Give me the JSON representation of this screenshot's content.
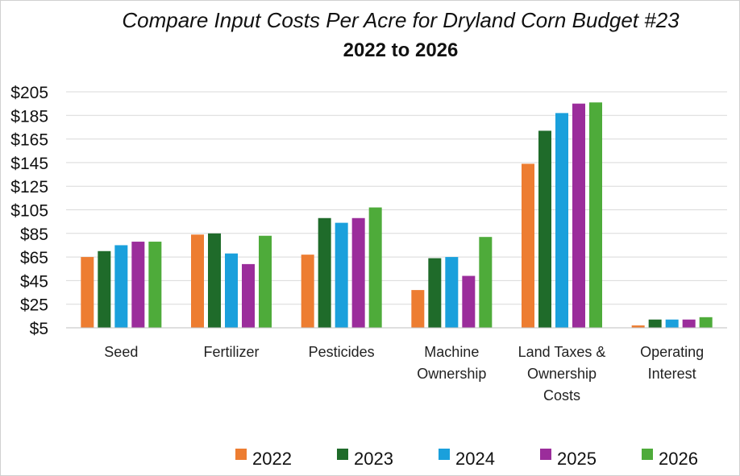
{
  "chart_data": {
    "type": "bar",
    "title": "Compare Input Costs Per Acre for Dryland Corn Budget #23",
    "subtitle": "2022 to 2026",
    "xlabel": "",
    "ylabel": "",
    "ylim": [
      5,
      205
    ],
    "ytick_values": [
      5,
      25,
      45,
      65,
      85,
      105,
      125,
      145,
      165,
      185,
      205
    ],
    "ytick_labels": [
      "$5",
      "$25",
      "$45",
      "$65",
      "$85",
      "$105",
      "$125",
      "$145",
      "$165",
      "$185",
      "$205"
    ],
    "categories": [
      [
        "Seed"
      ],
      [
        "Fertilizer"
      ],
      [
        "Pesticides"
      ],
      [
        "Machine",
        "Ownership"
      ],
      [
        "Land Taxes &",
        "Ownership",
        "Costs"
      ],
      [
        "Operating",
        "Interest"
      ]
    ],
    "series": [
      {
        "name": "2022",
        "color": "#ED7D31",
        "values": [
          65,
          84,
          67,
          37,
          144,
          7
        ]
      },
      {
        "name": "2023",
        "color": "#1F6B2A",
        "values": [
          70,
          85,
          98,
          64,
          172,
          12
        ]
      },
      {
        "name": "2024",
        "color": "#1AA0DC",
        "values": [
          75,
          68,
          94,
          65,
          187,
          12
        ]
      },
      {
        "name": "2025",
        "color": "#9B2D9B",
        "values": [
          78,
          59,
          98,
          49,
          195,
          12
        ]
      },
      {
        "name": "2026",
        "color": "#4EAB3A",
        "values": [
          78,
          83,
          107,
          82,
          196,
          14
        ]
      }
    ],
    "grid": true,
    "legend_position": "bottom"
  }
}
